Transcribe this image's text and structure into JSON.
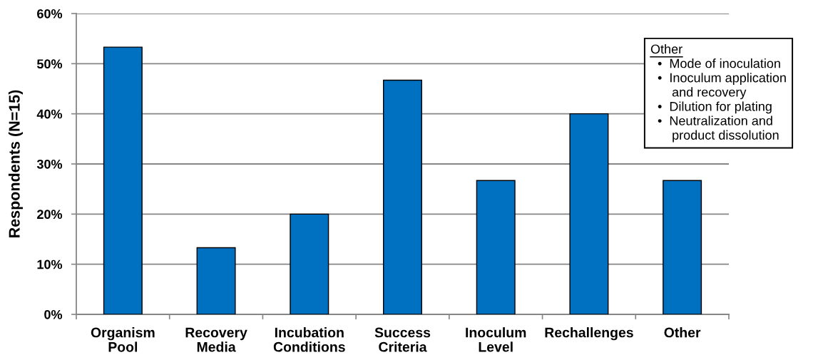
{
  "chart_data": {
    "type": "bar",
    "ylabel": "Respondents (N=15)",
    "categories": [
      "Organism\nPool",
      "Recovery\nMedia",
      "Incubation\nConditions",
      "Success\nCriteria",
      "Inoculum\nLevel",
      "Rechallenges",
      "Other"
    ],
    "values": [
      53.3,
      13.3,
      20.0,
      46.7,
      26.7,
      40.0,
      26.7
    ],
    "color": "#0070c0",
    "ylim": [
      0,
      60
    ],
    "yticks": [
      {
        "value": 0,
        "label": "0%"
      },
      {
        "value": 10,
        "label": "10%"
      },
      {
        "value": 20,
        "label": "20%"
      },
      {
        "value": 30,
        "label": "30%"
      },
      {
        "value": 40,
        "label": "40%"
      },
      {
        "value": 50,
        "label": "50%"
      },
      {
        "value": 60,
        "label": "60%"
      }
    ],
    "grid": "y",
    "annotations": [
      "Other\n  •  Mode of inoculation\n  •  Inoculum application\n      and recovery\n  •  Dilution for plating\n  •  Neutralization and\n      product dissolution"
    ]
  }
}
